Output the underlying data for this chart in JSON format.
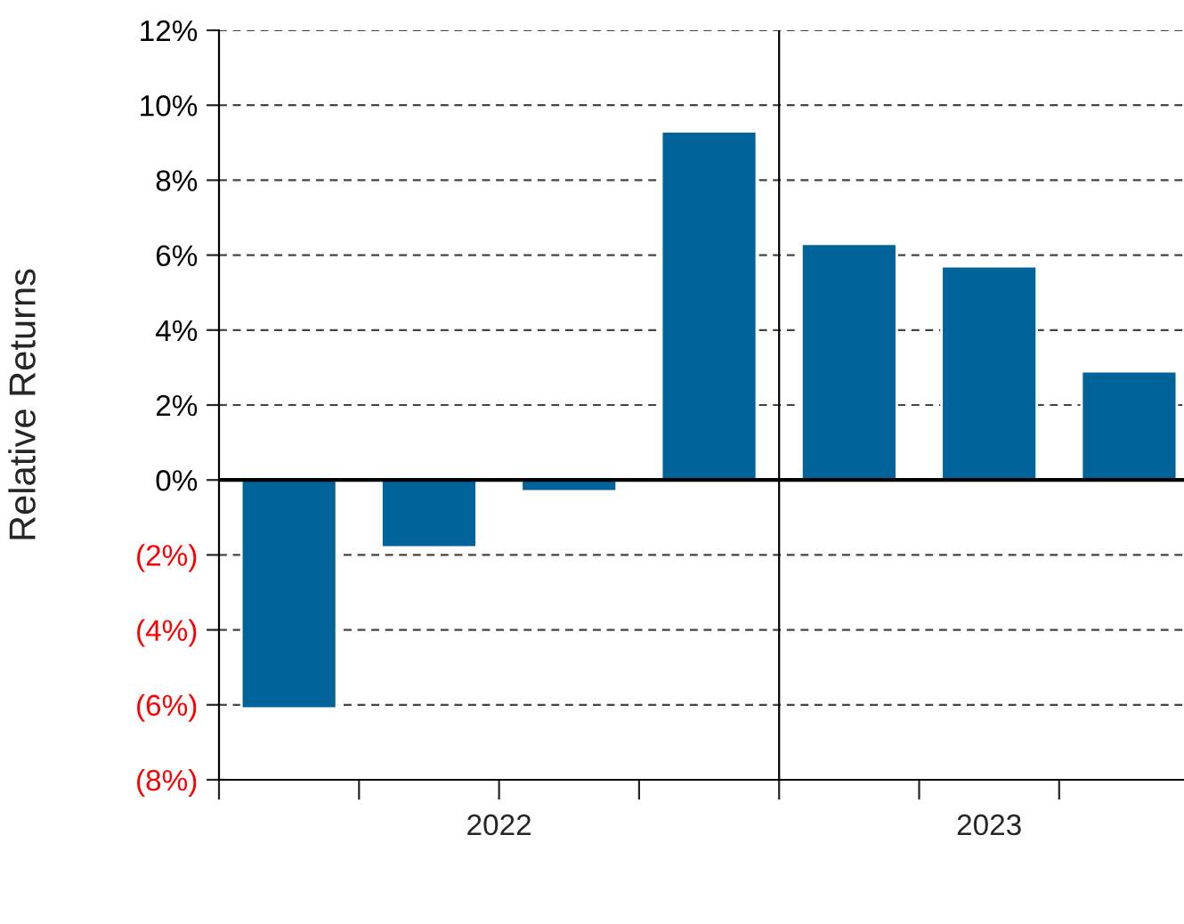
{
  "chart_data": {
    "type": "bar",
    "ylabel": "Relative Returns",
    "categories": [
      null,
      null,
      null,
      null,
      null,
      null,
      null
    ],
    "series": [
      {
        "color": "#00639a",
        "values": [
          -6.1,
          -1.8,
          -0.3,
          9.3,
          6.3,
          5.7,
          2.9
        ]
      }
    ],
    "ylim": [
      -8,
      12
    ],
    "yticks": [
      {
        "value": -8,
        "label": "(8%)"
      },
      {
        "value": -6,
        "label": "(6%)"
      },
      {
        "value": -4,
        "label": "(4%)"
      },
      {
        "value": -2,
        "label": "(2%)"
      },
      {
        "value": 0,
        "label": "0%"
      },
      {
        "value": 2,
        "label": "2%"
      },
      {
        "value": 4,
        "label": "4%"
      },
      {
        "value": 6,
        "label": "6%"
      },
      {
        "value": 8,
        "label": "8%"
      },
      {
        "value": 10,
        "label": "10%"
      },
      {
        "value": 12,
        "label": "12%"
      }
    ],
    "ref_lines": [
      {
        "axis": "y",
        "value": 0,
        "color": "#000000"
      }
    ],
    "annotations": [
      "2022",
      "2023"
    ],
    "grid": "y",
    "legend": false
  }
}
